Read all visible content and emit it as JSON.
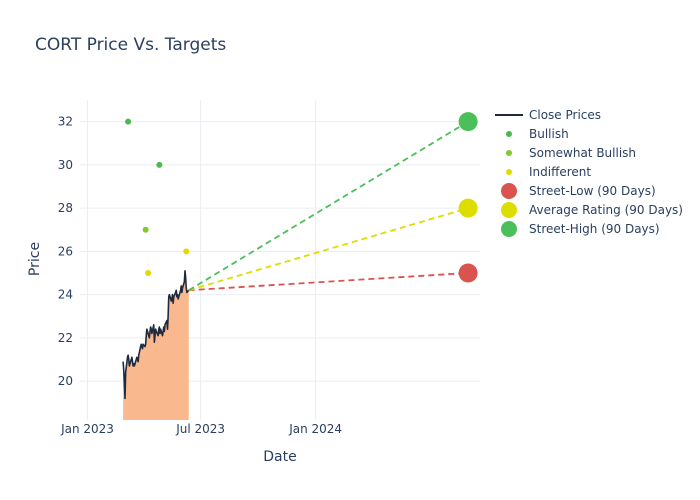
{
  "chart_data": {
    "type": "line",
    "title": "CORT Price Vs. Targets",
    "xlabel": "Date",
    "ylabel": "Price",
    "xlim": [
      "2022-12-20",
      "2024-09-20"
    ],
    "ylim": [
      18.2,
      33.0
    ],
    "grid": true,
    "legend_position": "right",
    "x_ticks": [
      {
        "date": "2023-01-01",
        "label": "Jan 2023"
      },
      {
        "date": "2023-07-01",
        "label": "Jul 2023"
      },
      {
        "date": "2024-01-01",
        "label": "Jan 2024"
      }
    ],
    "y_ticks": [
      20,
      22,
      24,
      26,
      28,
      30,
      32
    ],
    "series": [
      {
        "name": "Close Prices",
        "type": "line-area",
        "color": "#1f2a3c",
        "fill_color": "#f9b88e",
        "x": [
          "2023-02-27",
          "2023-02-28",
          "2023-03-01",
          "2023-03-02",
          "2023-03-03",
          "2023-03-06",
          "2023-03-07",
          "2023-03-08",
          "2023-03-09",
          "2023-03-10",
          "2023-03-13",
          "2023-03-14",
          "2023-03-15",
          "2023-03-16",
          "2023-03-17",
          "2023-03-20",
          "2023-03-21",
          "2023-03-22",
          "2023-03-23",
          "2023-03-24",
          "2023-03-27",
          "2023-03-28",
          "2023-03-29",
          "2023-03-30",
          "2023-03-31",
          "2023-04-03",
          "2023-04-04",
          "2023-04-05",
          "2023-04-06",
          "2023-04-10",
          "2023-04-11",
          "2023-04-12",
          "2023-04-13",
          "2023-04-14",
          "2023-04-17",
          "2023-04-18",
          "2023-04-19",
          "2023-04-20",
          "2023-04-21",
          "2023-04-24",
          "2023-04-25",
          "2023-04-26",
          "2023-04-27",
          "2023-04-28",
          "2023-05-01",
          "2023-05-02",
          "2023-05-03",
          "2023-05-04",
          "2023-05-05",
          "2023-05-08",
          "2023-05-09",
          "2023-05-10",
          "2023-05-11",
          "2023-05-12",
          "2023-05-15",
          "2023-05-16",
          "2023-05-17",
          "2023-05-18",
          "2023-05-19",
          "2023-05-22",
          "2023-05-23",
          "2023-05-24",
          "2023-05-25",
          "2023-05-26",
          "2023-05-30",
          "2023-05-31",
          "2023-06-01",
          "2023-06-02",
          "2023-06-05",
          "2023-06-06",
          "2023-06-07",
          "2023-06-08",
          "2023-06-09",
          "2023-06-12"
        ],
        "values": [
          20.9,
          20.5,
          19.9,
          19.2,
          20.4,
          21.1,
          21.2,
          21.0,
          20.7,
          20.8,
          21.1,
          20.9,
          20.7,
          20.8,
          20.7,
          21.0,
          21.1,
          21.0,
          20.9,
          21.2,
          21.6,
          21.7,
          21.6,
          21.5,
          21.7,
          21.6,
          21.7,
          22.1,
          22.4,
          22.0,
          22.3,
          22.5,
          22.4,
          22.2,
          22.6,
          21.8,
          22.1,
          22.4,
          22.3,
          22.1,
          22.4,
          22.5,
          22.2,
          22.4,
          22.1,
          22.3,
          22.5,
          22.3,
          22.6,
          22.8,
          22.4,
          23.0,
          23.9,
          24.0,
          23.7,
          23.8,
          24.0,
          23.6,
          23.9,
          24.1,
          24.2,
          23.9,
          24.0,
          23.8,
          24.2,
          24.4,
          24.1,
          24.3,
          24.6,
          25.1,
          24.8,
          24.3,
          24.1,
          24.2
        ]
      },
      {
        "name": "Bullish",
        "type": "markers",
        "color": "#4bb852",
        "points": [
          {
            "x": "2023-03-07",
            "y": 32
          },
          {
            "x": "2023-04-26",
            "y": 30
          }
        ]
      },
      {
        "name": "Somewhat Bullish",
        "type": "markers",
        "color": "#86c62e",
        "points": [
          {
            "x": "2023-04-04",
            "y": 27
          }
        ]
      },
      {
        "name": "Indifferent",
        "type": "markers",
        "color": "#e3d900",
        "points": [
          {
            "x": "2023-04-08",
            "y": 25
          },
          {
            "x": "2023-06-08",
            "y": 26
          }
        ]
      },
      {
        "name": "Street-Low (90 Days)",
        "type": "target",
        "color": "#d9534f",
        "from": {
          "x": "2023-06-12",
          "y": 24.2
        },
        "to": {
          "x": "2024-09-01",
          "y": 25
        }
      },
      {
        "name": "Average Rating (90 Days)",
        "type": "target",
        "color": "#dddd00",
        "from": {
          "x": "2023-06-12",
          "y": 24.2
        },
        "to": {
          "x": "2024-09-01",
          "y": 28
        }
      },
      {
        "name": "Street-High (90 Days)",
        "type": "target",
        "color": "#4bbf59",
        "from": {
          "x": "2023-06-12",
          "y": 24.2
        },
        "to": {
          "x": "2024-09-01",
          "y": 32
        }
      }
    ]
  },
  "legend": {
    "items": [
      {
        "label": "Close Prices",
        "kind": "line",
        "color": "#1f2a3c"
      },
      {
        "label": "Bullish",
        "kind": "dot",
        "color": "#4bb852"
      },
      {
        "label": "Somewhat Bullish",
        "kind": "dot",
        "color": "#86c62e"
      },
      {
        "label": "Indifferent",
        "kind": "dot",
        "color": "#e3d900"
      },
      {
        "label": "Street-Low (90 Days)",
        "kind": "bigdot",
        "color": "#d9534f"
      },
      {
        "label": "Average Rating (90 Days)",
        "kind": "bigdot",
        "color": "#dddd00"
      },
      {
        "label": "Street-High (90 Days)",
        "kind": "bigdot",
        "color": "#4bbf59"
      }
    ]
  }
}
